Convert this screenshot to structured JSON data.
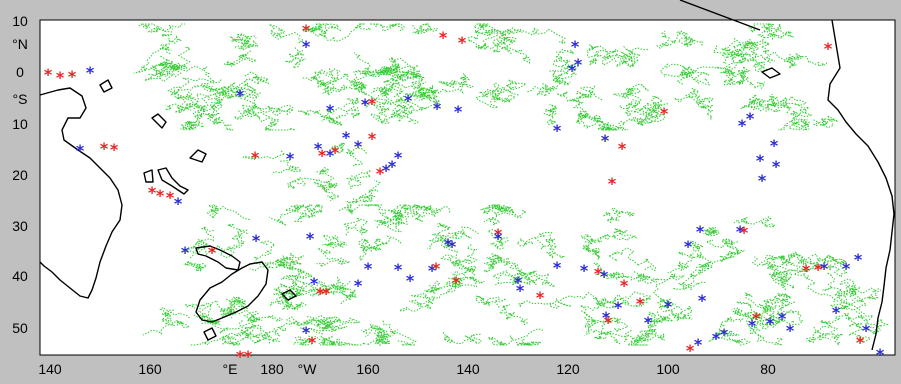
{
  "map": {
    "x_ticks": [
      "140",
      "160",
      "°E",
      "180",
      "°W",
      "160",
      "140",
      "120",
      "100",
      "80"
    ],
    "y_ticks": [
      "10",
      "°N",
      "0",
      "°S",
      "10",
      "20",
      "30",
      "40",
      "50"
    ],
    "colors": {
      "background": "#c0c0c0",
      "plot_area": "#ffffff",
      "drift_tracks": "#33cc33",
      "marker_blue": "#2a2ad8",
      "marker_red": "#e82323",
      "coastline": "#000000"
    },
    "track_longitudes_start": 2,
    "marker_symbol": "*"
  }
}
